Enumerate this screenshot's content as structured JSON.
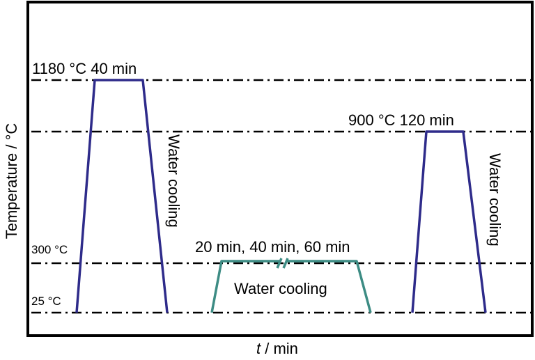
{
  "diagram": {
    "y_axis_label": "Temperature / °C",
    "x_axis_label_italic": "t",
    "x_axis_label_rest": " / min",
    "levels": {
      "top": "1180 °C 40 min",
      "second": "900 °C 120 min",
      "third": "300 °C",
      "base": "25 °C"
    },
    "tempering_times": "20 min, 40 min, 60 min",
    "cooling_labels": [
      "Water cooling",
      "Water cooling",
      "Water cooling"
    ],
    "colors": {
      "solution_treatment": "#2e2b8a",
      "tempering": "#3d8c84",
      "frame": "#000000"
    }
  }
}
